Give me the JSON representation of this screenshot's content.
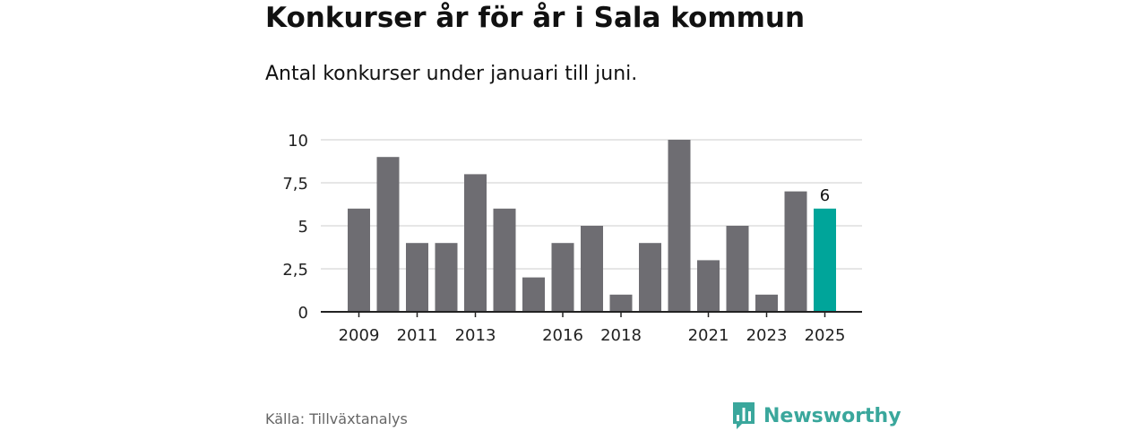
{
  "header": {
    "title": "Konkurser år för år i Sala kommun",
    "subtitle": "Antal konkurser under januari till juni."
  },
  "footer": {
    "source": "Källa: Tillväxtanalys",
    "brand": "Newsworthy"
  },
  "colors": {
    "bar": "#6e6d72",
    "highlight": "#00a59a",
    "grid": "#dddddd",
    "axis": "#222222",
    "brand": "#3aa79c"
  },
  "icons": {
    "logo": "bar-chart-speech-bubble-icon"
  },
  "chart_data": {
    "type": "bar",
    "categories": [
      "2009",
      "2010",
      "2011",
      "2012",
      "2013",
      "2014",
      "2015",
      "2016",
      "2017",
      "2018",
      "2019",
      "2020",
      "2021",
      "2022",
      "2023",
      "2024",
      "2025"
    ],
    "values": [
      6,
      9,
      4,
      4,
      8,
      6,
      2,
      4,
      5,
      1,
      4,
      10,
      3,
      5,
      1,
      7,
      6
    ],
    "highlight_index": 16,
    "data_labels": [
      {
        "index": 16,
        "text": "6"
      }
    ],
    "x_tick_labels": [
      "2009",
      "2011",
      "2013",
      "2016",
      "2018",
      "2021",
      "2023",
      "2025"
    ],
    "y_ticks": [
      0,
      2.5,
      5,
      7.5,
      10
    ],
    "y_tick_labels": [
      "0",
      "2,5",
      "5",
      "7,5",
      "10"
    ],
    "ylim": [
      0,
      10
    ],
    "grid": true,
    "title": "",
    "xlabel": "",
    "ylabel": ""
  }
}
